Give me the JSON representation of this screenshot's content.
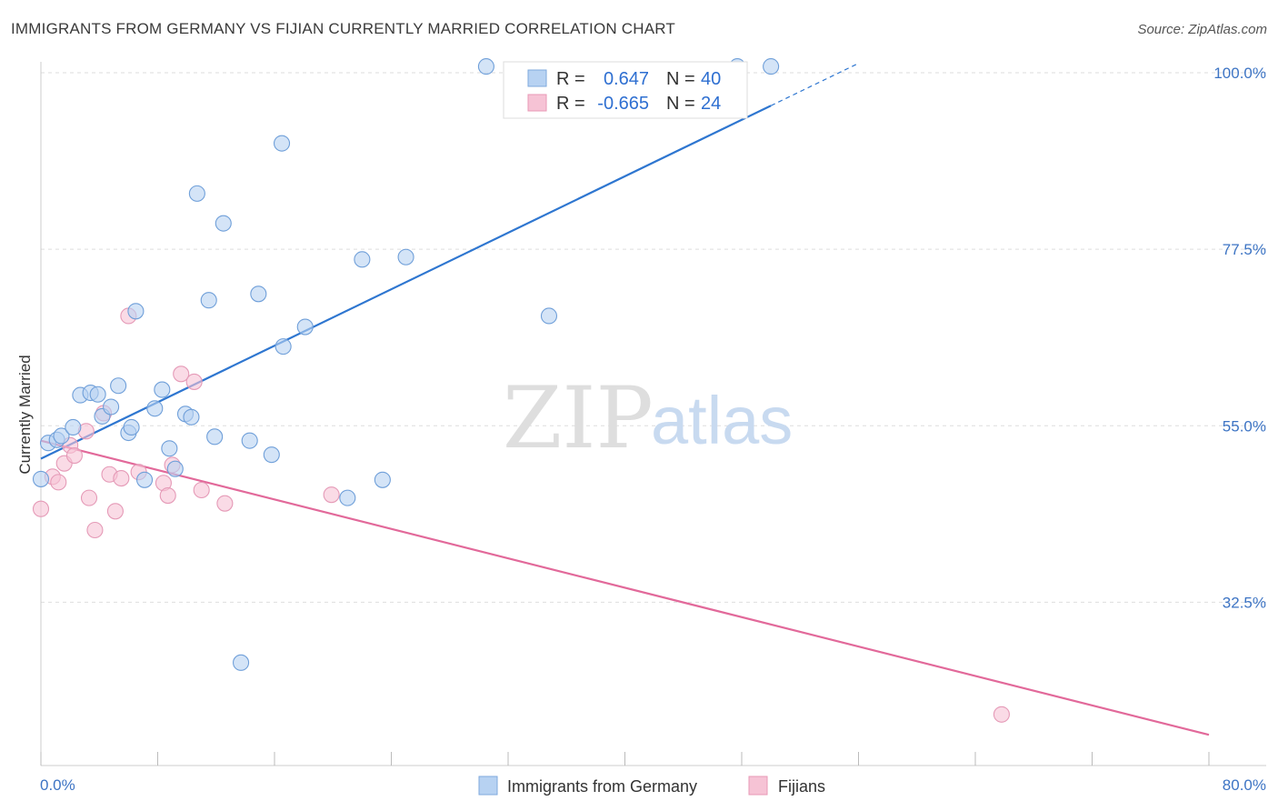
{
  "title": "IMMIGRANTS FROM GERMANY VS FIJIAN CURRENTLY MARRIED CORRELATION CHART",
  "source": "Source: ZipAtlas.com",
  "watermark": {
    "zip": "ZIP",
    "atlas": "atlas"
  },
  "colors": {
    "germany": "#2e76d0",
    "germany_fill": "#b7d2f2",
    "fijians": "#e2699a",
    "fijians_fill": "#f6c3d5",
    "tick_text": "#3d74c4"
  },
  "legend": {
    "germany": {
      "r_label": "R =",
      "r_value": "0.647",
      "n_label": "N =",
      "n_value": "40"
    },
    "fijians": {
      "r_label": "R =",
      "r_value": "-0.665",
      "n_label": "N =",
      "n_value": "24"
    }
  },
  "bottom_legend": {
    "germany": "Immigrants from Germany",
    "fijians": "Fijians"
  },
  "chart_data": {
    "type": "scatter",
    "title": "IMMIGRANTS FROM GERMANY VS FIJIAN CURRENTLY MARRIED CORRELATION CHART",
    "xlabel": "",
    "ylabel": "Currently Married",
    "xlim": [
      0,
      80
    ],
    "ylim": [
      14,
      100
    ],
    "x_tick_labels": [
      "0.0%",
      "80.0%"
    ],
    "y_ticks": [
      32.5,
      55.0,
      77.5,
      100.0
    ],
    "y_tick_labels": [
      "32.5%",
      "55.0%",
      "77.5%",
      "100.0%"
    ],
    "grid": true,
    "legend_position": "top-center",
    "series": [
      {
        "name": "Immigrants from Germany",
        "R": 0.647,
        "N": 40,
        "trend": {
          "x0": 0,
          "y0": 50.8,
          "x1": 50,
          "y1": 95.8,
          "dashed_to_x": 56
        },
        "points": [
          [
            0.0,
            48.2
          ],
          [
            0.5,
            52.8
          ],
          [
            1.1,
            53.2
          ],
          [
            1.4,
            53.7
          ],
          [
            2.2,
            54.8
          ],
          [
            2.7,
            58.9
          ],
          [
            3.4,
            59.2
          ],
          [
            3.9,
            59.0
          ],
          [
            4.2,
            56.2
          ],
          [
            4.8,
            57.4
          ],
          [
            5.3,
            60.1
          ],
          [
            6.0,
            54.1
          ],
          [
            6.2,
            54.8
          ],
          [
            6.5,
            69.6
          ],
          [
            7.1,
            48.1
          ],
          [
            7.8,
            57.2
          ],
          [
            8.3,
            59.6
          ],
          [
            8.8,
            52.1
          ],
          [
            9.2,
            49.5
          ],
          [
            9.9,
            56.5
          ],
          [
            10.3,
            56.1
          ],
          [
            10.7,
            84.6
          ],
          [
            11.5,
            71.0
          ],
          [
            11.9,
            53.6
          ],
          [
            12.5,
            80.8
          ],
          [
            13.7,
            24.8
          ],
          [
            14.3,
            53.1
          ],
          [
            14.9,
            71.8
          ],
          [
            15.8,
            51.3
          ],
          [
            16.5,
            91.0
          ],
          [
            16.6,
            65.1
          ],
          [
            18.1,
            67.6
          ],
          [
            21.0,
            45.8
          ],
          [
            22.0,
            76.2
          ],
          [
            23.4,
            48.1
          ],
          [
            25.0,
            76.5
          ],
          [
            30.5,
            100.8
          ],
          [
            34.8,
            69.0
          ],
          [
            47.7,
            100.8
          ],
          [
            50.0,
            100.8
          ]
        ]
      },
      {
        "name": "Fijians",
        "R": -0.665,
        "N": 24,
        "trend": {
          "x0": 0,
          "y0": 53.1,
          "x1": 80,
          "y1": 15.6
        },
        "points": [
          [
            0.0,
            44.4
          ],
          [
            0.8,
            48.5
          ],
          [
            1.2,
            47.8
          ],
          [
            1.6,
            50.2
          ],
          [
            2.0,
            52.5
          ],
          [
            2.3,
            51.2
          ],
          [
            3.1,
            54.3
          ],
          [
            3.3,
            45.8
          ],
          [
            3.7,
            41.7
          ],
          [
            4.3,
            56.6
          ],
          [
            4.7,
            48.8
          ],
          [
            5.1,
            44.1
          ],
          [
            5.5,
            48.3
          ],
          [
            6.0,
            69.0
          ],
          [
            6.7,
            49.1
          ],
          [
            8.4,
            47.7
          ],
          [
            8.7,
            46.1
          ],
          [
            9.0,
            50.0
          ],
          [
            9.6,
            61.6
          ],
          [
            10.5,
            60.6
          ],
          [
            11.0,
            46.8
          ],
          [
            12.6,
            45.1
          ],
          [
            19.9,
            46.2
          ],
          [
            65.8,
            18.2
          ]
        ]
      }
    ]
  }
}
